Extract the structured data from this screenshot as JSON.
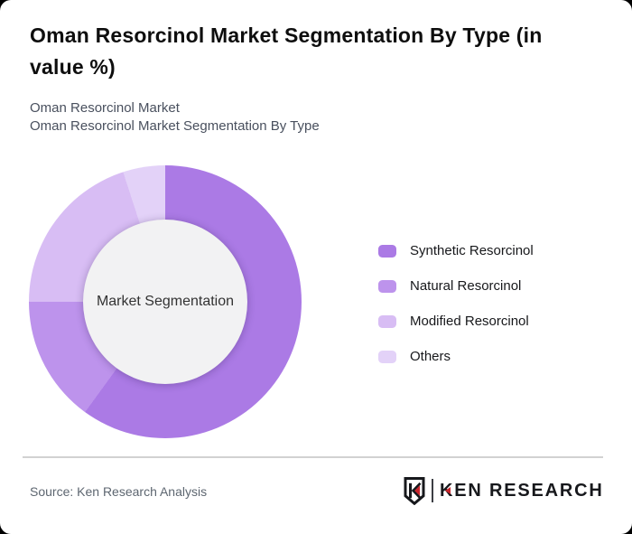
{
  "header": {
    "title": "Oman Resorcinol Market Segmentation By Type (in value %)",
    "subtitle_line1": "Oman Resorcinol Market",
    "subtitle_line2": "Oman Resorcinol Market Segmentation By Type"
  },
  "chart_data": {
    "type": "pie",
    "variant": "donut",
    "title": "Oman Resorcinol Market Segmentation By Type (in value %)",
    "center_label": "Market Segmentation",
    "unit": "% of market value",
    "start_angle_deg": 0,
    "direction": "clockwise",
    "legend_position": "right",
    "series": [
      {
        "name": "Synthetic Resorcinol",
        "value": 60,
        "color": "#ab7ae5"
      },
      {
        "name": "Natural Resorcinol",
        "value": 15,
        "color": "#bd93ec"
      },
      {
        "name": "Modified Resorcinol",
        "value": 20,
        "color": "#d8bdf4"
      },
      {
        "name": "Others",
        "value": 5,
        "color": "#e3d2f8"
      }
    ]
  },
  "footer": {
    "source": "Source: Ken Research Analysis",
    "logo_text": "KEN RESEARCH"
  },
  "colors": {
    "center_fill": "#f2f2f3",
    "logo_red": "#c9252c",
    "logo_dark": "#17181c"
  }
}
